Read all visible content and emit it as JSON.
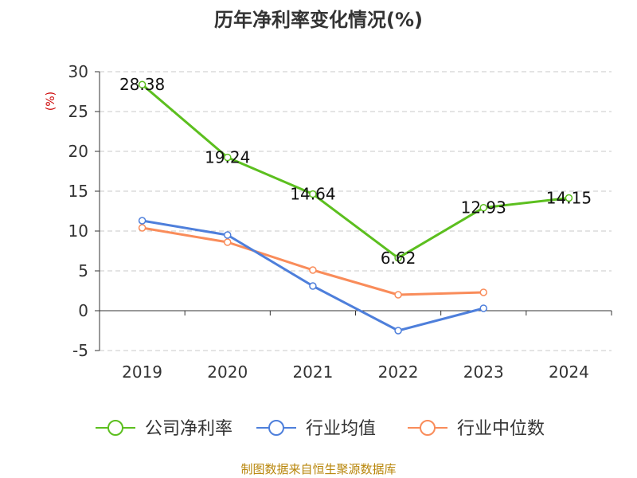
{
  "chart_data": {
    "type": "line",
    "title": "历年净利率变化情况(%)",
    "ylabel": "(%)",
    "xlabel": "",
    "categories": [
      "2019",
      "2020",
      "2021",
      "2022",
      "2023",
      "2024"
    ],
    "ylim": [
      -5,
      30
    ],
    "yticks": [
      30,
      25,
      20,
      15,
      10,
      5,
      0,
      -5
    ],
    "grid": true,
    "legend_position": "bottom",
    "series": [
      {
        "name": "公司净利率",
        "color": "#5cbf1f",
        "values": [
          28.38,
          19.24,
          14.64,
          6.62,
          12.93,
          14.15
        ],
        "labels": [
          "28.38",
          "19.24",
          "14.64",
          "6.62",
          "12.93",
          "14.15"
        ]
      },
      {
        "name": "行业均值",
        "color": "#4e7fdb",
        "values": [
          11.3,
          9.5,
          3.1,
          -2.5,
          0.3,
          null
        ]
      },
      {
        "name": "行业中位数",
        "color": "#f98c5a",
        "values": [
          10.4,
          8.6,
          5.1,
          2.0,
          2.3,
          null
        ]
      }
    ]
  },
  "footer": {
    "source": "制图数据来自恒生聚源数据库"
  }
}
